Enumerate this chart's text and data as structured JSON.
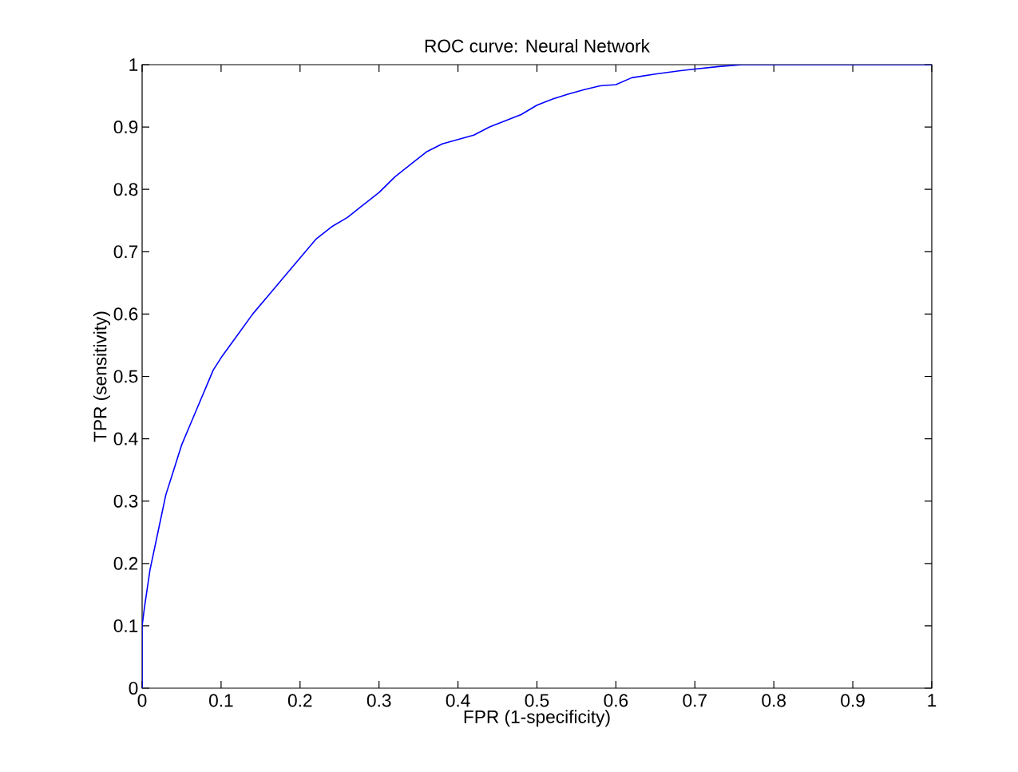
{
  "chart_data": {
    "type": "line",
    "title": "ROC curve: Neural Network",
    "xlabel": "FPR (1-specificity)",
    "ylabel": "TPR (sensitivity)",
    "xlim": [
      0,
      1
    ],
    "ylim": [
      0,
      1
    ],
    "xticks": [
      0,
      0.1,
      0.2,
      0.3,
      0.4,
      0.5,
      0.6,
      0.7,
      0.8,
      0.9,
      1
    ],
    "yticks": [
      0,
      0.1,
      0.2,
      0.3,
      0.4,
      0.5,
      0.6,
      0.7,
      0.8,
      0.9,
      1
    ],
    "x": [
      0,
      0,
      0.003,
      0.01,
      0.02,
      0.03,
      0.04,
      0.05,
      0.06,
      0.07,
      0.08,
      0.09,
      0.1,
      0.12,
      0.14,
      0.16,
      0.18,
      0.2,
      0.22,
      0.24,
      0.26,
      0.28,
      0.3,
      0.32,
      0.34,
      0.36,
      0.38,
      0.4,
      0.42,
      0.44,
      0.46,
      0.48,
      0.5,
      0.52,
      0.54,
      0.56,
      0.58,
      0.6,
      0.62,
      0.65,
      0.68,
      0.7,
      0.73,
      0.76,
      1
    ],
    "series": [
      {
        "color": "#0000ff",
        "values": [
          0,
          0.1,
          0.13,
          0.19,
          0.25,
          0.31,
          0.35,
          0.39,
          0.42,
          0.45,
          0.48,
          0.51,
          0.53,
          0.565,
          0.6,
          0.63,
          0.66,
          0.69,
          0.72,
          0.74,
          0.755,
          0.775,
          0.795,
          0.82,
          0.84,
          0.86,
          0.873,
          0.88,
          0.887,
          0.9,
          0.91,
          0.92,
          0.935,
          0.945,
          0.953,
          0.96,
          0.966,
          0.968,
          0.979,
          0.985,
          0.99,
          0.993,
          0.997,
          1,
          1
        ]
      }
    ]
  }
}
